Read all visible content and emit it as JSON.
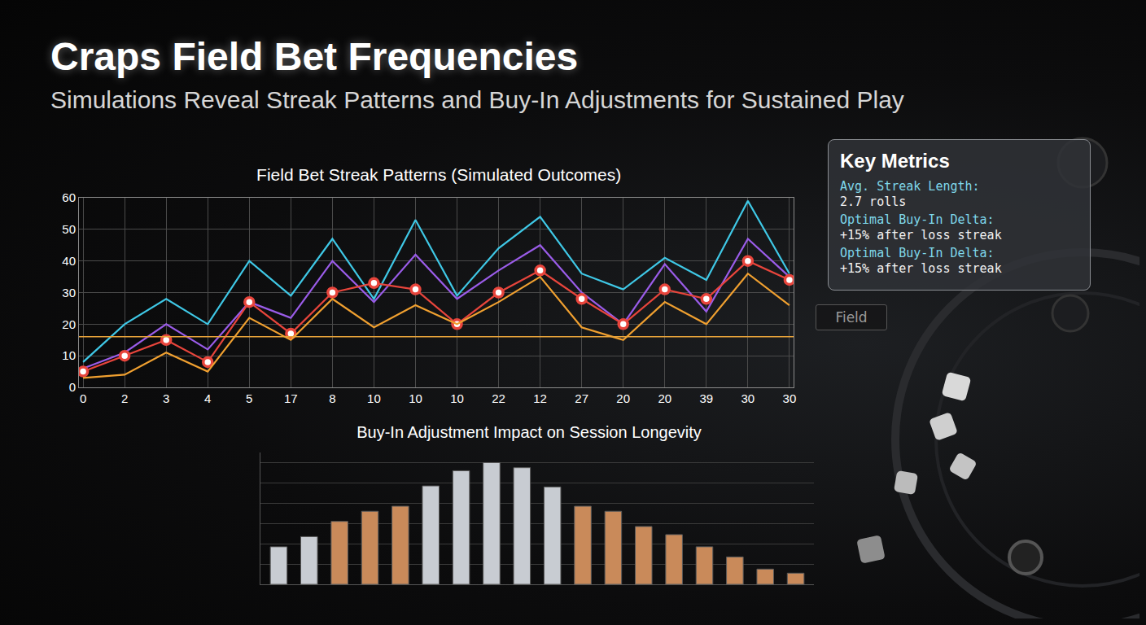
{
  "title": "Craps Field Bet Frequencies",
  "subtitle": "Simulations Reveal Streak Patterns and Buy-In Adjustments for Sustained Play",
  "key_metrics": {
    "title": "Key Metrics",
    "items": [
      {
        "label": "Avg. Streak Length:",
        "value": "2.7 rolls"
      },
      {
        "label": "Optimal Buy-In Delta:",
        "value": "+15% after loss streak"
      },
      {
        "label": "Optimal Buy-In Delta:",
        "value": "+15% after loss streak"
      }
    ]
  },
  "field_label": "Field",
  "chart_data": [
    {
      "type": "line",
      "title": "Field Bet Streak Patterns (Simulated Outcomes)",
      "categories": [
        "0",
        "2",
        "3",
        "4",
        "5",
        "17",
        "8",
        "10",
        "10",
        "10",
        "22",
        "12",
        "27",
        "20",
        "20",
        "39",
        "30",
        "30"
      ],
      "series": [
        {
          "color": "#3fc8e6",
          "values": [
            8,
            20,
            28,
            20,
            40,
            29,
            47,
            28,
            53,
            29,
            44,
            54,
            36,
            31,
            41,
            34,
            59,
            36
          ]
        },
        {
          "color": "#9a5ce8",
          "values": [
            6,
            11,
            20,
            12,
            27,
            22,
            40,
            27,
            42,
            28,
            37,
            45,
            30,
            20,
            39,
            24,
            47,
            35
          ]
        },
        {
          "color": "#e8453c",
          "marker": "circle",
          "values": [
            5,
            10,
            15,
            8,
            27,
            17,
            30,
            33,
            31,
            20,
            30,
            37,
            28,
            20,
            31,
            28,
            40,
            34
          ]
        },
        {
          "color": "#f0a030",
          "values": [
            3,
            4,
            11,
            5,
            22,
            15,
            28,
            19,
            26,
            20,
            27,
            35,
            19,
            15,
            27,
            20,
            36,
            26
          ]
        }
      ],
      "reference_line": {
        "value": 16,
        "color": "#e8a33a"
      },
      "ylim": [
        0,
        60
      ],
      "yticks": [
        0,
        10,
        20,
        30,
        40,
        50,
        60
      ],
      "grid": true
    },
    {
      "type": "bar",
      "title": "Buy-In Adjustment Impact on Session Longevity",
      "categories": [
        null,
        null,
        null,
        null,
        null,
        null,
        null,
        null,
        null,
        null,
        null,
        null,
        null,
        null,
        null,
        null,
        null,
        null
      ],
      "values": [
        37,
        47,
        62,
        72,
        77,
        97,
        112,
        120,
        115,
        96,
        77,
        72,
        57,
        49,
        37,
        27,
        15,
        11
      ],
      "colors": [
        "#c8ccd2",
        "#c8ccd2",
        "#c98a5a",
        "#c98a5a",
        "#c98a5a",
        "#c8ccd2",
        "#c8ccd2",
        "#c8ccd2",
        "#c8ccd2",
        "#c8ccd2",
        "#c98a5a",
        "#c98a5a",
        "#c98a5a",
        "#c98a5a",
        "#c98a5a",
        "#c98a5a",
        "#c98a5a",
        "#c98a5a"
      ],
      "ylim": [
        0,
        130
      ],
      "yticks": [
        0,
        20,
        40,
        60,
        80,
        100,
        120
      ],
      "grid": true,
      "tick_labels": false
    }
  ]
}
